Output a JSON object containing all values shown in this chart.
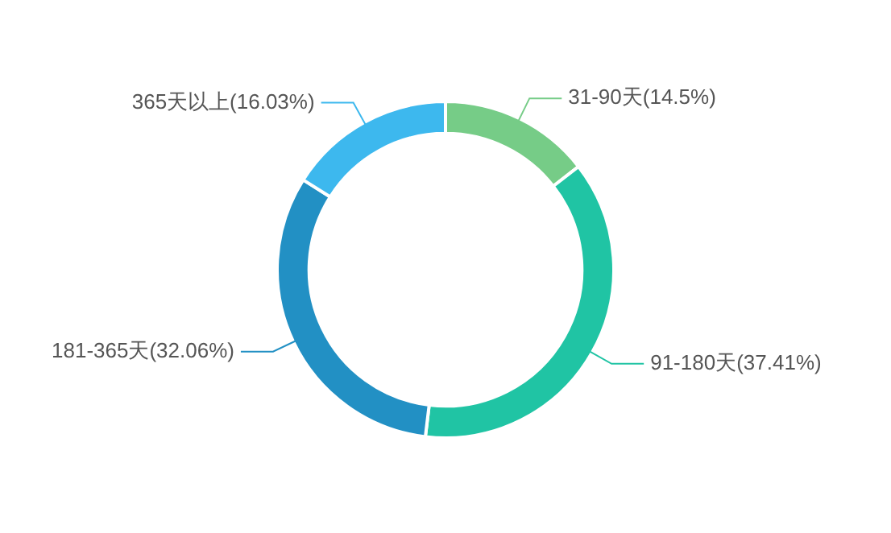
{
  "chart_data": {
    "type": "donut",
    "categories": [
      "31-90天(14.5%)",
      "91-180天(37.41%)",
      "181-365天(32.06%)",
      "365天以上(16.03%)"
    ],
    "values": [
      14.5,
      37.41,
      32.06,
      16.03
    ],
    "colors": [
      "#76cc87",
      "#20c4a4",
      "#2290c4",
      "#3db8ee"
    ],
    "legend": false
  }
}
